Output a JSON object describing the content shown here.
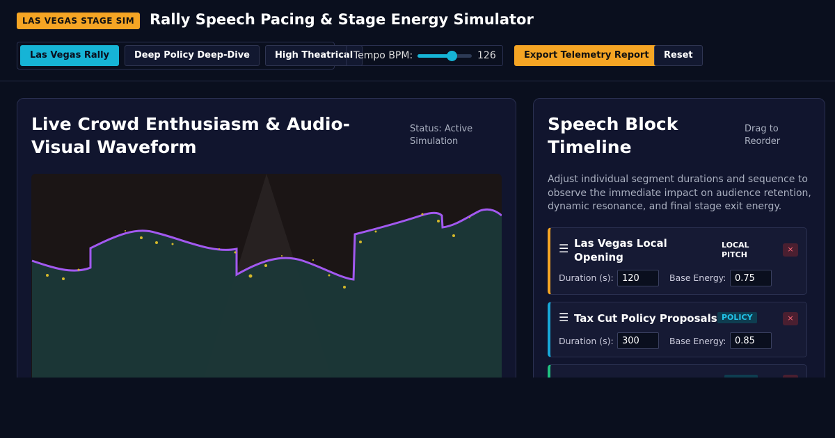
{
  "header": {
    "badge": "LAS VEGAS STAGE SIM",
    "title": "Rally Speech Pacing & Stage Energy Simulator"
  },
  "controls": {
    "presets": [
      "Las Vegas Rally",
      "Deep Policy Deep-Dive",
      "High Theatrical"
    ],
    "tempo_label": "Tempo BPM:",
    "tempo_value": 126,
    "export": "Export Telemetry Report",
    "reset": "Reset"
  },
  "visualizer": {
    "title": "Live Crowd Enthusiasm & Audio-Visual Waveform",
    "status": "Status: Active Simulation"
  },
  "timeline": {
    "title": "Speech Block Timeline",
    "hint": "Drag to Reorder",
    "description": "Adjust individual segment durations and sequence to observe the immediate impact on audience retention, dynamic resonance, and final stage exit energy.",
    "duration_label": "Duration (s):",
    "energy_label": "Base Energy:",
    "blocks": [
      {
        "title": "Las Vegas Local Opening",
        "tag": "LOCAL PITCH",
        "duration": 120,
        "energy": 0.75
      },
      {
        "title": "Tax Cut Policy Proposals",
        "tag": "POLICY",
        "duration": 300,
        "energy": 0.85
      }
    ]
  }
}
